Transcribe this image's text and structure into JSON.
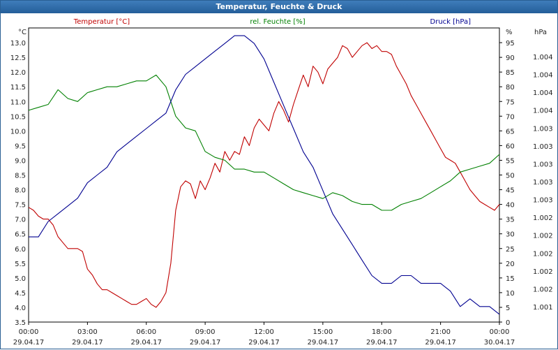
{
  "window": {
    "title": "Temperatur, Feuchte & Druck"
  },
  "colors": {
    "temperature": "#c00000",
    "humidity": "#008000",
    "pressure": "#000090",
    "grid": "#000000",
    "header_bg": "#2a5f93"
  },
  "chart_data": {
    "type": "line",
    "grid": true,
    "x_ticks": [
      {
        "time": "00:00",
        "date": "29.04.17"
      },
      {
        "time": "03:00",
        "date": "29.04.17"
      },
      {
        "time": "06:00",
        "date": "29.04.17"
      },
      {
        "time": "09:00",
        "date": "29.04.17"
      },
      {
        "time": "12:00",
        "date": "29.04.17"
      },
      {
        "time": "15:00",
        "date": "29.04.17"
      },
      {
        "time": "18:00",
        "date": "29.04.17"
      },
      {
        "time": "21:00",
        "date": "29.04.17"
      },
      {
        "time": "00:00",
        "date": "30.04.17"
      }
    ],
    "axes": {
      "temperature": {
        "title": "Temperatur [°C]",
        "unit": "°C",
        "range": [
          3.5,
          13.5
        ],
        "ticks": [
          "3.5",
          "4.0",
          "4.5",
          "5.0",
          "5.5",
          "6.0",
          "6.5",
          "7.0",
          "7.5",
          "8.0",
          "8.5",
          "9.0",
          "9.5",
          "10.0",
          "10.5",
          "11.0",
          "11.5",
          "12.0",
          "12.5",
          "13.0"
        ]
      },
      "humidity": {
        "title": "rel. Feuchte [%]",
        "unit": "%",
        "range": [
          0,
          100
        ],
        "ticks": [
          "0",
          "5",
          "10",
          "15",
          "20",
          "25",
          "30",
          "35",
          "40",
          "45",
          "50",
          "55",
          "60",
          "65",
          "70",
          "75",
          "80",
          "85",
          "90",
          "95"
        ]
      },
      "pressure": {
        "title": "Druck [hPa]",
        "unit": "hPa",
        "range": [
          1000.6,
          1004.4
        ],
        "ticks": [
          "1.001",
          "1.002",
          "1.002",
          "1.002",
          "1.002",
          "1.002",
          "1.003",
          "1.003",
          "1.003",
          "1.003",
          "1.003",
          "1.004",
          "1.004",
          "1.004",
          "1.004"
        ]
      }
    },
    "series": [
      {
        "name": "Temperatur [°C]",
        "axis": "temperature",
        "color": "#c00000",
        "x_hours": [
          0,
          0.25,
          0.5,
          0.75,
          1,
          1.25,
          1.5,
          1.75,
          2,
          2.25,
          2.5,
          2.75,
          3,
          3.25,
          3.5,
          3.75,
          4,
          4.25,
          4.5,
          4.75,
          5,
          5.25,
          5.5,
          5.75,
          6,
          6.25,
          6.5,
          6.75,
          7,
          7.25,
          7.5,
          7.75,
          8,
          8.25,
          8.5,
          8.75,
          9,
          9.25,
          9.5,
          9.75,
          10,
          10.25,
          10.5,
          10.75,
          11,
          11.25,
          11.5,
          11.75,
          12,
          12.25,
          12.5,
          12.75,
          13,
          13.25,
          13.5,
          13.75,
          14,
          14.25,
          14.5,
          14.75,
          15,
          15.25,
          15.5,
          15.75,
          16,
          16.25,
          16.5,
          16.75,
          17,
          17.25,
          17.5,
          17.75,
          18,
          18.25,
          18.5,
          18.75,
          19,
          19.25,
          19.5,
          19.75,
          20,
          20.25,
          20.5,
          20.75,
          21,
          21.25,
          21.5,
          21.75,
          22,
          22.25,
          22.5,
          22.75,
          23,
          23.25,
          23.5,
          23.75,
          24
        ],
        "values": [
          7.4,
          7.3,
          7.1,
          7.0,
          7.0,
          6.8,
          6.4,
          6.2,
          6.0,
          6.0,
          6.0,
          5.9,
          5.3,
          5.1,
          4.8,
          4.6,
          4.6,
          4.5,
          4.4,
          4.3,
          4.2,
          4.1,
          4.1,
          4.2,
          4.3,
          4.1,
          4.0,
          4.2,
          4.5,
          5.5,
          7.3,
          8.1,
          8.3,
          8.2,
          7.7,
          8.3,
          8.0,
          8.4,
          8.9,
          8.6,
          9.3,
          9.0,
          9.3,
          9.2,
          9.8,
          9.5,
          10.1,
          10.4,
          10.2,
          10.0,
          10.6,
          11.0,
          10.7,
          10.3,
          10.9,
          11.4,
          11.9,
          11.5,
          12.2,
          12.0,
          11.6,
          12.1,
          12.3,
          12.5,
          12.9,
          12.8,
          12.5,
          12.7,
          12.9,
          13.0,
          12.8,
          12.9,
          12.7,
          12.7,
          12.6,
          12.2,
          11.9,
          11.6,
          11.2,
          10.9,
          10.6,
          10.3,
          10.0,
          9.7,
          9.4,
          9.1,
          9.0,
          8.9,
          8.6,
          8.3,
          8.0,
          7.8,
          7.6,
          7.5,
          7.4,
          7.3,
          7.5
        ]
      },
      {
        "name": "rel. Feuchte [%]",
        "axis": "humidity",
        "color": "#008000",
        "x_hours": [
          0,
          0.5,
          1,
          1.5,
          2,
          2.5,
          3,
          3.5,
          4,
          4.5,
          5,
          5.5,
          6,
          6.5,
          7,
          7.5,
          8,
          8.5,
          9,
          9.5,
          10,
          10.5,
          11,
          11.5,
          12,
          12.5,
          13,
          13.5,
          14,
          14.5,
          15,
          15.5,
          16,
          16.5,
          17,
          17.5,
          18,
          18.5,
          19,
          19.5,
          20,
          20.5,
          21,
          21.5,
          22,
          22.5,
          23,
          23.5,
          24
        ],
        "values": [
          72,
          73,
          74,
          79,
          76,
          75,
          78,
          79,
          80,
          80,
          81,
          82,
          82,
          84,
          80,
          70,
          66,
          65,
          58,
          56,
          55,
          52,
          52,
          51,
          51,
          49,
          47,
          45,
          44,
          43,
          42,
          44,
          43,
          41,
          40,
          40,
          38,
          38,
          40,
          41,
          42,
          44,
          46,
          48,
          51,
          52,
          53,
          54,
          57
        ]
      },
      {
        "name": "Druck [hPa]",
        "axis": "pressure",
        "color": "#000090",
        "x_hours": [
          0,
          0.5,
          1,
          1.5,
          2,
          2.5,
          3,
          3.5,
          4,
          4.5,
          5,
          5.5,
          6,
          6.5,
          7,
          7.5,
          8,
          8.5,
          9,
          9.5,
          10,
          10.5,
          11,
          11.5,
          12,
          12.5,
          13,
          13.5,
          14,
          14.5,
          15,
          15.5,
          16,
          16.5,
          17,
          17.5,
          18,
          18.5,
          19,
          19.5,
          20,
          20.5,
          21,
          21.5,
          22,
          22.5,
          23,
          23.5,
          24
        ],
        "values": [
          1001.7,
          1001.7,
          1001.9,
          1002.0,
          1002.1,
          1002.2,
          1002.4,
          1002.5,
          1002.6,
          1002.8,
          1002.9,
          1003.0,
          1003.1,
          1003.2,
          1003.3,
          1003.6,
          1003.8,
          1003.9,
          1004.0,
          1004.1,
          1004.2,
          1004.3,
          1004.3,
          1004.2,
          1004.0,
          1003.7,
          1003.4,
          1003.1,
          1002.8,
          1002.6,
          1002.3,
          1002.0,
          1001.8,
          1001.6,
          1001.4,
          1001.2,
          1001.1,
          1001.1,
          1001.2,
          1001.2,
          1001.1,
          1001.1,
          1001.1,
          1001.0,
          1000.8,
          1000.9,
          1000.8,
          1000.8,
          1000.7
        ]
      }
    ]
  }
}
